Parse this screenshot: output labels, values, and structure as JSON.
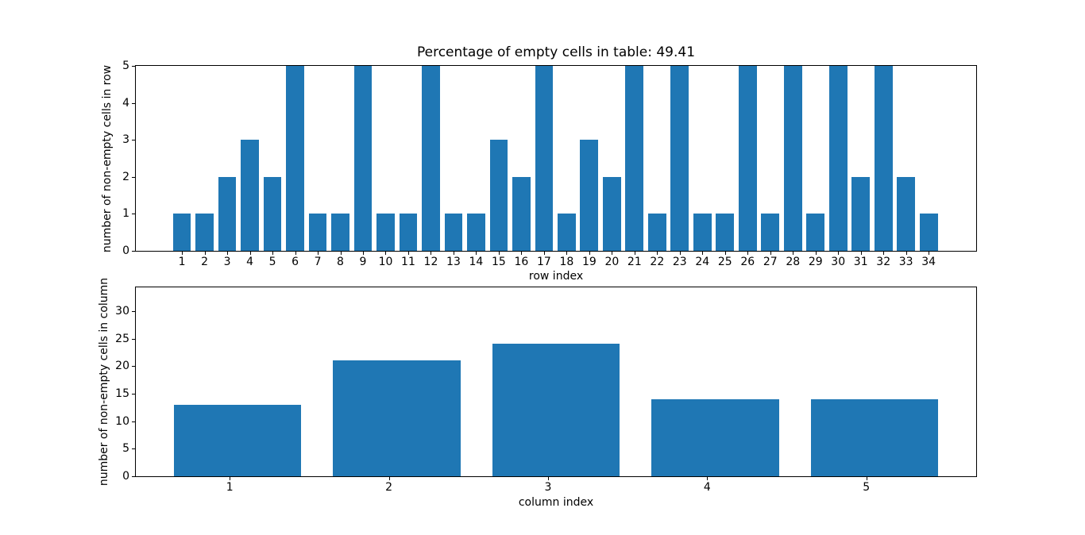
{
  "figure": {
    "background": "#ffffff",
    "text_color": "#000000",
    "spine_color": "#000000"
  },
  "chart_data": [
    {
      "type": "bar",
      "title": "Percentage of empty cells in table: 49.41",
      "xlabel": "row index",
      "ylabel": "number of non-empty cells in row",
      "categories": [
        "1",
        "2",
        "3",
        "4",
        "5",
        "6",
        "7",
        "8",
        "9",
        "10",
        "11",
        "12",
        "13",
        "14",
        "15",
        "16",
        "17",
        "18",
        "19",
        "20",
        "21",
        "22",
        "23",
        "24",
        "25",
        "26",
        "27",
        "28",
        "29",
        "30",
        "31",
        "32",
        "33",
        "34"
      ],
      "values": [
        1,
        1,
        2,
        3,
        2,
        5,
        1,
        1,
        5,
        1,
        1,
        5,
        1,
        1,
        3,
        2,
        5,
        1,
        3,
        2,
        5,
        1,
        5,
        1,
        1,
        5,
        1,
        5,
        1,
        5,
        2,
        5,
        2,
        1
      ],
      "bar_color": "#1f77b4",
      "ylim": [
        0,
        5
      ],
      "yticks": [
        0,
        1,
        2,
        3,
        4,
        5
      ],
      "xlim": [
        -1.04,
        36.1
      ],
      "bar_width": 0.8,
      "bar_center_offset": 0,
      "grid": false,
      "legend": false
    },
    {
      "type": "bar",
      "title": "",
      "xlabel": "column index",
      "ylabel": "number of non-empty cells in column",
      "categories": [
        "1",
        "2",
        "3",
        "4",
        "5"
      ],
      "values": [
        13,
        21,
        24,
        14,
        14
      ],
      "bar_color": "#1f77b4",
      "ylim": [
        0,
        34.3
      ],
      "yticks": [
        0,
        5,
        10,
        15,
        20,
        25,
        30
      ],
      "xlim": [
        0.41,
        5.69
      ],
      "bar_width": 0.8,
      "bar_center_offset": 0.05,
      "grid": false,
      "legend": false
    }
  ]
}
